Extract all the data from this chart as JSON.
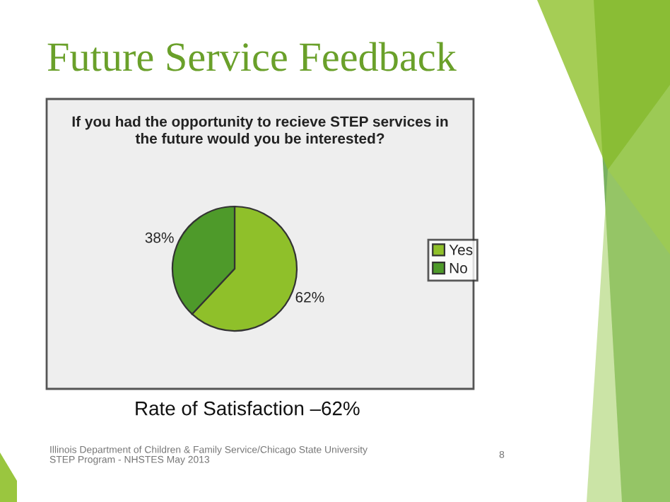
{
  "chart_data": {
    "type": "pie",
    "title": "Future Service Feedback",
    "subtitle": "If you had the opportunity to recieve STEP services in\nthe future would you be interested?",
    "categories": [
      "Yes",
      "No"
    ],
    "values": [
      62,
      38
    ],
    "colors": [
      "#8fc02a",
      "#4e9a2a"
    ],
    "value_labels": [
      "62%",
      "38%"
    ],
    "legend": "right",
    "annotations": [
      "Rate of Satisfaction –62%",
      "Illinois Department of Children & Family Service/Chicago State University\nSTEP Program - NHSTES May 2013",
      "8"
    ]
  }
}
